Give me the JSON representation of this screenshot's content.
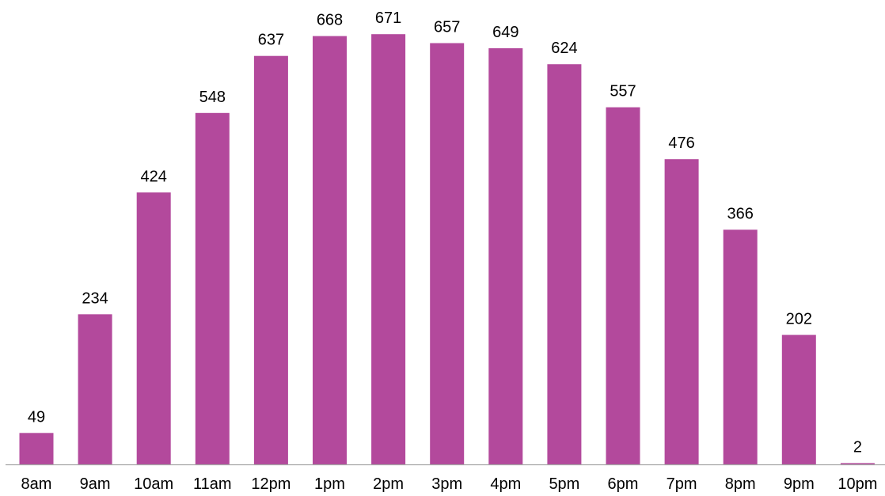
{
  "chart_data": {
    "type": "bar",
    "categories": [
      "8am",
      "9am",
      "10am",
      "11am",
      "12pm",
      "1pm",
      "2pm",
      "3pm",
      "4pm",
      "5pm",
      "6pm",
      "7pm",
      "8pm",
      "9pm",
      "10pm"
    ],
    "values": [
      49,
      234,
      424,
      548,
      637,
      668,
      671,
      657,
      649,
      624,
      557,
      476,
      366,
      202,
      2
    ],
    "data_labels": [
      "49",
      "234",
      "424",
      "548",
      "637",
      "668",
      "671",
      "657",
      "649",
      "624",
      "557",
      "476",
      "366",
      "202",
      "2"
    ],
    "ylim": [
      0,
      700
    ],
    "grid": false,
    "legend": "none",
    "bar_color": "#B3499C",
    "axis_color": "#A6A6A6"
  }
}
